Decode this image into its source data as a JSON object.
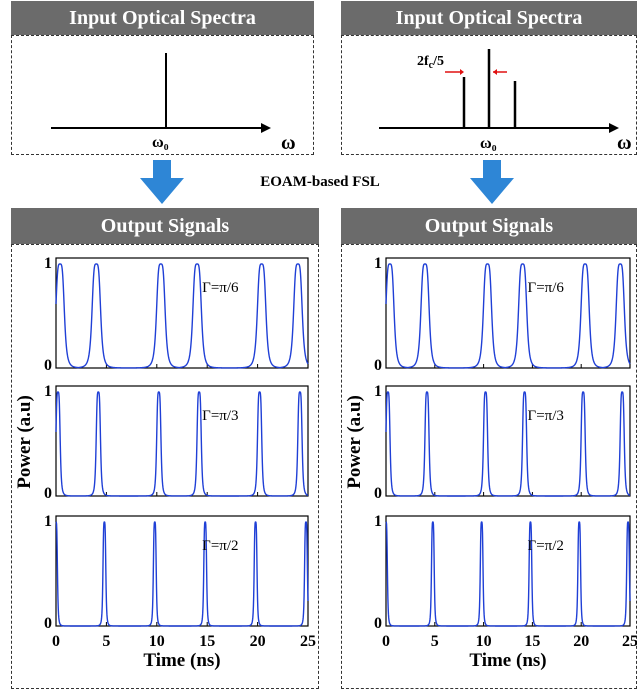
{
  "input_panels": [
    {
      "title": "Input Optical Spectra",
      "center_label": "ω₀",
      "axis_label": "ω",
      "annotation": ""
    },
    {
      "title": "Input Optical Spectra",
      "center_label": "ω₀",
      "axis_label": "ω",
      "annotation_main": "2f",
      "annotation_sub": "c",
      "annotation_tail": "/5"
    }
  ],
  "middle_label": "EOAM-based FSL",
  "output_panels": [
    {
      "title": "Output Signals"
    },
    {
      "title": "Output Signals"
    }
  ],
  "ylabel": "Power (a.u)",
  "xlabel": "Time (ns)",
  "subplot_labels": [
    "Γ=π/6",
    "Γ=π/3",
    "Γ=π/2"
  ],
  "x_ticks": [
    "0",
    "5",
    "10",
    "15",
    "20",
    "25"
  ],
  "y_ticks": [
    "0",
    "1"
  ],
  "colors": {
    "header_bg": "#6b6b6b",
    "trace": "#1f3fd6",
    "arrow": "#2e86d6"
  },
  "chart_data": [
    {
      "type": "line",
      "panel": "left",
      "xlim": [
        0,
        25
      ],
      "ylim": [
        0,
        1
      ],
      "series": [
        {
          "gamma": "Γ=π/6",
          "peaks": [
            0.4,
            4.0,
            10.4,
            14.0,
            20.4,
            24.0
          ],
          "peak_width": 0.9
        },
        {
          "gamma": "Γ=π/3",
          "peaks": [
            0.2,
            4.2,
            10.2,
            14.2,
            20.2,
            24.2
          ],
          "peak_width": 0.45
        },
        {
          "gamma": "Γ=π/2",
          "peaks": [
            0.0,
            4.8,
            9.8,
            14.8,
            19.8,
            24.8
          ],
          "peak_width": 0.3
        }
      ]
    },
    {
      "type": "line",
      "panel": "right",
      "xlim": [
        0,
        25
      ],
      "ylim": [
        0,
        1
      ],
      "series": [
        {
          "gamma": "Γ=π/6",
          "peaks": [
            0.4,
            4.0,
            10.4,
            14.0,
            20.4,
            24.0
          ],
          "peak_width": 0.9
        },
        {
          "gamma": "Γ=π/3",
          "peaks": [
            0.2,
            4.2,
            10.2,
            14.2,
            20.2,
            24.2
          ],
          "peak_width": 0.45
        },
        {
          "gamma": "Γ=π/2",
          "peaks": [
            0.0,
            4.8,
            9.8,
            14.8,
            19.8,
            24.8
          ],
          "peak_width": 0.3
        }
      ]
    }
  ]
}
